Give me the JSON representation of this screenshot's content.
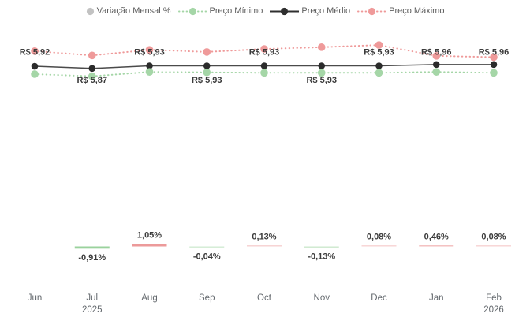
{
  "legend": {
    "items": [
      {
        "label": "Variação Mensal %",
        "marker": "dot",
        "color": "#c2c2c2"
      },
      {
        "label": "Preço Mínimo",
        "marker": "dotted-line-dot",
        "color": "#a5d6a7"
      },
      {
        "label": "Preço Médio",
        "marker": "solid-line-dot",
        "color": "#2f2f2f"
      },
      {
        "label": "Preço Máximo",
        "marker": "dotted-line-dot",
        "color": "#ef9a9a"
      }
    ]
  },
  "chart_data": {
    "type": "line",
    "categories": [
      "Jun",
      "Jul",
      "Aug",
      "Sep",
      "Oct",
      "Nov",
      "Dec",
      "Jan",
      "Feb"
    ],
    "category_sublabels": [
      "",
      "2025",
      "",
      "",
      "",
      "",
      "",
      "",
      "2026"
    ],
    "grid": false,
    "legend_position": "top",
    "series": [
      {
        "name": "Preço Máximo",
        "type": "line",
        "line_style": "dotted",
        "color": "#ef9a9a",
        "values": [
          6.27,
          6.17,
          6.3,
          6.25,
          6.32,
          6.36,
          6.41,
          6.16,
          6.13
        ],
        "values_estimated": true
      },
      {
        "name": "Preço Médio",
        "type": "line",
        "line_style": "solid",
        "color": "#4a4a4a",
        "marker_color": "#2b2b2b",
        "values": [
          5.92,
          5.87,
          5.93,
          5.93,
          5.93,
          5.93,
          5.93,
          5.96,
          5.96
        ],
        "point_labels": [
          "R$ 5,92",
          "R$ 5,87",
          "R$ 5,93",
          "R$ 5,93",
          "R$ 5,93",
          "R$ 5,93",
          "R$ 5,93",
          "R$ 5,96",
          "R$ 5,96"
        ],
        "label_placement": [
          "above",
          "below",
          "above",
          "below",
          "above",
          "below",
          "above",
          "above",
          "above"
        ]
      },
      {
        "name": "Preço Mínimo",
        "type": "line",
        "line_style": "dotted",
        "color": "#a5d6a7",
        "values": [
          5.74,
          5.69,
          5.79,
          5.78,
          5.77,
          5.77,
          5.77,
          5.79,
          5.77
        ],
        "values_estimated": true
      },
      {
        "name": "Variação Mensal %",
        "type": "bar",
        "values": [
          null,
          -0.91,
          1.05,
          -0.04,
          0.13,
          -0.13,
          0.08,
          0.46,
          0.08
        ],
        "point_labels": [
          "",
          "-0,91%",
          "1,05%",
          "-0,04%",
          "0,13%",
          "-0,13%",
          "0,08%",
          "0,46%",
          "0,08%"
        ],
        "positive_color": "#e57373",
        "negative_color": "#66bb6a"
      }
    ]
  },
  "colors": {
    "background": "#ffffff",
    "value_label_text": "#3b3b3b",
    "axis_label_text": "#63686d",
    "legend_text": "#5d5d5d"
  }
}
